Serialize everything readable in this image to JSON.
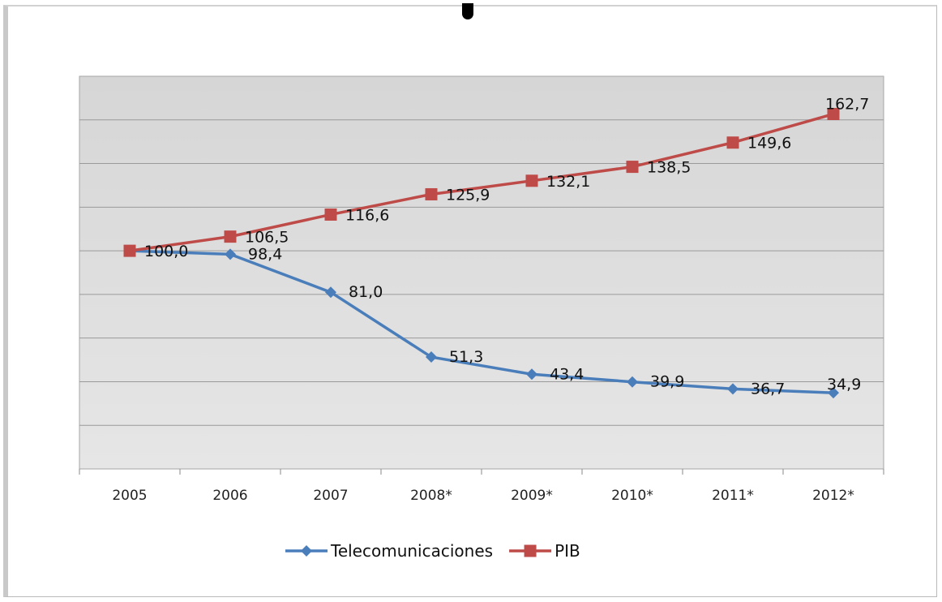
{
  "chart_data": {
    "type": "line",
    "title": "",
    "xlabel": "",
    "ylabel": "",
    "categories": [
      "2005",
      "2006",
      "2007",
      "2008*",
      "2009*",
      "2010*",
      "2011*",
      "2012*"
    ],
    "ylim": [
      0,
      180
    ],
    "grid": true,
    "legend": "bottom",
    "series": [
      {
        "name": "Telecomunicaciones",
        "color": "#4a7ebb",
        "marker": "diamond",
        "values": [
          100.0,
          98.4,
          81.0,
          51.3,
          43.4,
          39.9,
          36.7,
          34.9
        ],
        "labels": [
          "",
          "98,4",
          "81,0",
          "51,3",
          "43,4",
          "39,9",
          "36,7",
          "34,9"
        ]
      },
      {
        "name": "PIB",
        "color": "#be4b48",
        "marker": "square",
        "values": [
          100.0,
          106.5,
          116.6,
          125.9,
          132.1,
          138.5,
          149.6,
          162.7
        ],
        "labels": [
          "100,0",
          "106,5",
          "116,6",
          "125,9",
          "132,1",
          "138,5",
          "149,6",
          "162,7"
        ]
      }
    ]
  }
}
